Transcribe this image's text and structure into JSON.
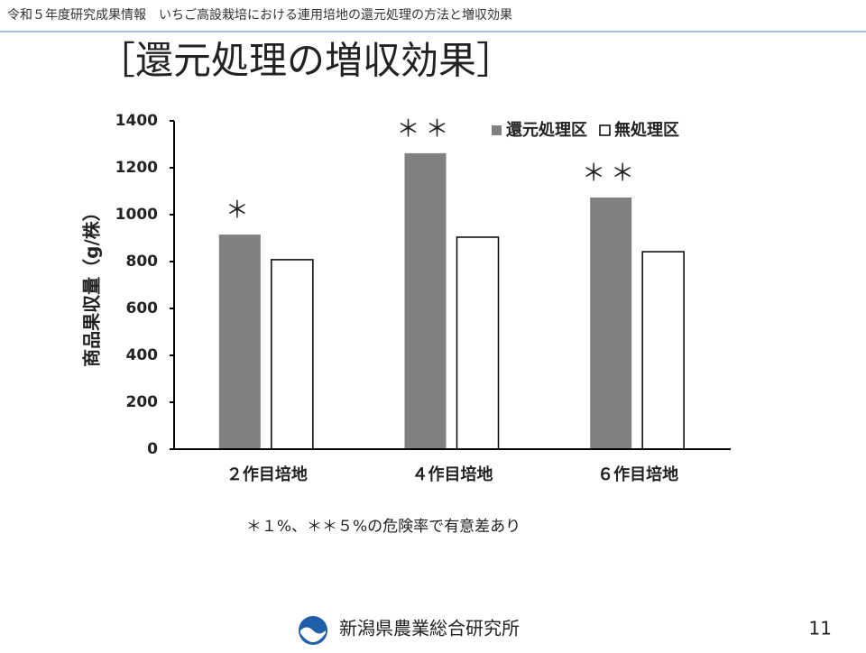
{
  "header": "令和５年度研究成果情報　いちご高設栽培における連用培地の還元処理の方法と増収効果",
  "slide_title": "［還元処理の増収効果］",
  "footnote": "＊１%、＊＊５%の危険率で有意差あり",
  "organization": "新潟県農業総合研究所",
  "page_number": "11",
  "chart_data": {
    "type": "bar",
    "ylabel": "商品果収量（g/株）",
    "categories": [
      "２作目培地",
      "４作目培地",
      "６作目培地"
    ],
    "series": [
      {
        "name": "還元処理区",
        "color": "#808080",
        "values": [
          915,
          1262,
          1073
        ]
      },
      {
        "name": "無処理区",
        "color": "#ffffff",
        "values": [
          808,
          904,
          842
        ]
      }
    ],
    "significance": [
      "＊",
      "＊＊",
      "＊＊"
    ],
    "ylim": [
      0,
      1400
    ],
    "yticks": [
      0,
      200,
      400,
      600,
      800,
      1000,
      1200,
      1400
    ],
    "grid": false,
    "legend": "top-right"
  }
}
